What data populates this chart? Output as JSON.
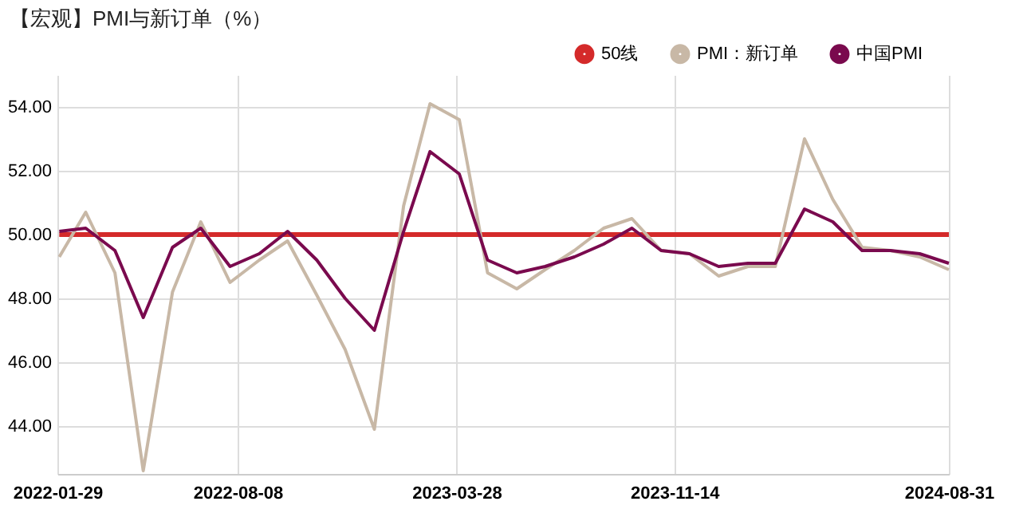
{
  "chart_data": {
    "type": "line",
    "title": "【宏观】PMI与新订单（%）",
    "x": [
      "2022-01-31",
      "2022-02-28",
      "2022-03-31",
      "2022-04-30",
      "2022-05-31",
      "2022-06-30",
      "2022-07-31",
      "2022-08-31",
      "2022-09-30",
      "2022-10-31",
      "2022-11-30",
      "2022-12-31",
      "2023-01-31",
      "2023-02-28",
      "2023-03-31",
      "2023-04-30",
      "2023-05-31",
      "2023-06-30",
      "2023-07-31",
      "2023-08-31",
      "2023-09-30",
      "2023-10-31",
      "2023-11-30",
      "2023-12-31",
      "2024-01-31",
      "2024-02-29",
      "2024-03-31",
      "2024-04-30",
      "2024-05-31",
      "2024-06-30",
      "2024-07-31",
      "2024-08-31"
    ],
    "series": [
      {
        "name": "50线",
        "color": "#d42a2a",
        "values": [
          50,
          50,
          50,
          50,
          50,
          50,
          50,
          50,
          50,
          50,
          50,
          50,
          50,
          50,
          50,
          50,
          50,
          50,
          50,
          50,
          50,
          50,
          50,
          50,
          50,
          50,
          50,
          50,
          50,
          50,
          50,
          50
        ]
      },
      {
        "name": "PMI：新订单",
        "color": "#c8b8a6",
        "values": [
          49.3,
          50.7,
          48.8,
          42.6,
          48.2,
          50.4,
          48.5,
          49.2,
          49.8,
          48.1,
          46.4,
          43.9,
          50.9,
          54.1,
          53.6,
          48.8,
          48.3,
          48.9,
          49.5,
          50.2,
          50.5,
          49.5,
          49.4,
          48.7,
          49.0,
          49.0,
          53.0,
          51.1,
          49.6,
          49.5,
          49.3,
          48.9
        ]
      },
      {
        "name": "中国PMI",
        "color": "#7a0a4e",
        "values": [
          50.1,
          50.2,
          49.5,
          47.4,
          49.6,
          50.2,
          49.0,
          49.4,
          50.1,
          49.2,
          48.0,
          47.0,
          50.1,
          52.6,
          51.9,
          49.2,
          48.8,
          49.0,
          49.3,
          49.7,
          50.2,
          49.5,
          49.4,
          49.0,
          49.1,
          49.1,
          50.8,
          50.4,
          49.5,
          49.5,
          49.4,
          49.1
        ]
      }
    ],
    "xlim": [
      "2022-01-29",
      "2024-08-31"
    ],
    "xticks": [
      "2022-01-29",
      "2022-08-08",
      "2023-03-28",
      "2023-11-14",
      "2024-08-31"
    ],
    "ylim": [
      42.5,
      55
    ],
    "yticks": [
      {
        "value": 44,
        "label": "44.00"
      },
      {
        "value": 46,
        "label": "46.00"
      },
      {
        "value": 48,
        "label": "48.00"
      },
      {
        "value": 50,
        "label": "50.00"
      },
      {
        "value": 52,
        "label": "52.00"
      },
      {
        "value": 54,
        "label": "54.00"
      }
    ],
    "grid": true,
    "legend": "top right",
    "marker": "none",
    "line_style": "solid"
  }
}
